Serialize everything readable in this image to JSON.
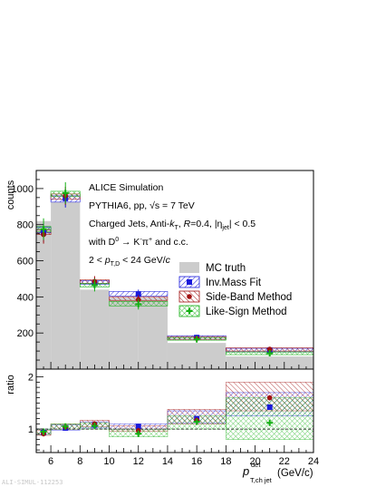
{
  "chart_data": {
    "type": "bar",
    "x_bins": [
      [
        5,
        6
      ],
      [
        6,
        8
      ],
      [
        8,
        10
      ],
      [
        10,
        12
      ],
      [
        12,
        14
      ],
      [
        14,
        18
      ],
      [
        18,
        24
      ]
    ],
    "x_centers": [
      5.5,
      7,
      9,
      11,
      13,
      16,
      21
    ],
    "xlim": [
      5,
      24
    ],
    "xticks": [
      6,
      8,
      10,
      12,
      14,
      16,
      18,
      20,
      22,
      24
    ],
    "xlabel_main": "p",
    "xlabel_sup": "det",
    "xlabel_sub": "T,ch jet",
    "xlabel_units": "(GeV/c)",
    "upper": {
      "ylabel": "counts",
      "ylim": [
        0,
        1100
      ],
      "yticks": [
        200,
        400,
        600,
        800,
        1000
      ],
      "series": [
        {
          "name": "MC truth",
          "style": "filled-hist",
          "color": "#cccccc",
          "values": [
            820,
            925,
            440,
            395,
            395,
            145,
            70
          ]
        },
        {
          "name": "Inv.Mass Fit",
          "marker": "square",
          "color": "#1a1adb",
          "x": [
            5.5,
            7,
            9,
            12,
            16,
            21
          ],
          "values": [
            755,
            945,
            475,
            415,
            175,
            105
          ],
          "errors": [
            50,
            50,
            30,
            25,
            15,
            10
          ]
        },
        {
          "name": "Side-Band Method",
          "marker": "circle",
          "color": "#a01010",
          "x": [
            5.5,
            7,
            9,
            12,
            16,
            21
          ],
          "values": [
            745,
            960,
            485,
            385,
            170,
            110
          ],
          "errors": [
            50,
            50,
            30,
            25,
            15,
            10
          ]
        },
        {
          "name": "Like-Sign Method",
          "marker": "cross",
          "color": "#14b014",
          "x": [
            5.5,
            7,
            9,
            12,
            16,
            21
          ],
          "values": [
            775,
            975,
            465,
            360,
            165,
            88
          ],
          "errors": [
            60,
            60,
            35,
            30,
            18,
            12
          ]
        }
      ],
      "bands": [
        {
          "series": "Inv.Mass Fit",
          "color": "#1a1adb",
          "bins": [
            [
              5,
              6,
              755,
              785
            ],
            [
              6,
              8,
              925,
              960
            ],
            [
              8,
              10,
              470,
              490
            ],
            [
              10,
              14,
              405,
              430
            ],
            [
              14,
              18,
              165,
              185
            ],
            [
              18,
              24,
              95,
              115
            ]
          ]
        },
        {
          "series": "Side-Band Method",
          "color": "#a01010",
          "bins": [
            [
              5,
              6,
              745,
              770
            ],
            [
              6,
              8,
              940,
              970
            ],
            [
              8,
              10,
              475,
              495
            ],
            [
              10,
              14,
              380,
              400
            ],
            [
              14,
              18,
              165,
              180
            ],
            [
              18,
              24,
              100,
              118
            ]
          ]
        },
        {
          "series": "Like-Sign Method",
          "color": "#14b014",
          "bins": [
            [
              5,
              6,
              760,
              790
            ],
            [
              6,
              8,
              955,
              985
            ],
            [
              8,
              10,
              455,
              475
            ],
            [
              10,
              14,
              350,
              375
            ],
            [
              14,
              18,
              160,
              175
            ],
            [
              18,
              24,
              80,
              95
            ]
          ]
        }
      ]
    },
    "ratio": {
      "ylabel": "ratio",
      "ylim": [
        0.55,
        2.15
      ],
      "yticks": [
        1,
        2
      ],
      "reference_line": 1,
      "series": [
        {
          "name": "Inv.Mass Fit",
          "x": [
            5.5,
            7,
            9,
            12,
            16,
            21
          ],
          "values": [
            0.93,
            1.02,
            1.08,
            1.05,
            1.2,
            1.42
          ]
        },
        {
          "name": "Side-Band Method",
          "x": [
            5.5,
            7,
            9,
            12,
            16,
            21
          ],
          "values": [
            0.91,
            1.04,
            1.1,
            0.97,
            1.17,
            1.6
          ]
        },
        {
          "name": "Like-Sign Method",
          "x": [
            5.5,
            7,
            9,
            12,
            16,
            21
          ],
          "values": [
            0.95,
            1.05,
            1.06,
            0.91,
            1.14,
            1.12
          ]
        }
      ],
      "bands": [
        {
          "series": "Inv.Mass Fit",
          "color": "#1a1adb",
          "bins": [
            [
              5,
              6,
              0.9,
              1.0
            ],
            [
              6,
              8,
              0.98,
              1.08
            ],
            [
              8,
              10,
              1.02,
              1.14
            ],
            [
              10,
              14,
              1.0,
              1.1
            ],
            [
              14,
              18,
              1.12,
              1.35
            ],
            [
              18,
              24,
              1.25,
              1.7
            ]
          ]
        },
        {
          "series": "Side-Band Method",
          "color": "#a01010",
          "bins": [
            [
              5,
              6,
              0.88,
              0.98
            ],
            [
              6,
              8,
              1.0,
              1.1
            ],
            [
              8,
              10,
              1.05,
              1.17
            ],
            [
              10,
              14,
              0.96,
              1.06
            ],
            [
              14,
              18,
              1.1,
              1.38
            ],
            [
              18,
              24,
              1.35,
              1.9
            ]
          ]
        },
        {
          "series": "Like-Sign Method",
          "color": "#14b014",
          "bins": [
            [
              5,
              6,
              0.9,
              1.0
            ],
            [
              6,
              8,
              1.0,
              1.1
            ],
            [
              8,
              10,
              1.0,
              1.12
            ],
            [
              10,
              14,
              0.85,
              1.0
            ],
            [
              14,
              18,
              1.0,
              1.25
            ],
            [
              18,
              24,
              0.8,
              1.6
            ]
          ]
        }
      ]
    }
  },
  "annotations": {
    "line1": "ALICE Simulation",
    "line2a": "PYTHIA6, pp, ",
    "line2b": "√s = 7 TeV",
    "line3a": "Charged Jets, Anti-",
    "line3k": "k",
    "line3kt": "T",
    "line3b": ", ",
    "line3R": "R",
    "line3c": "=0.4, |η",
    "line3jet": "jet",
    "line3d": "| < 0.5",
    "line4a": "with D",
    "line4sup": "0",
    "line4b": " → K",
    "line4sup2": "-",
    "line4c": "π",
    "line4sup3": "+",
    "line4d": " and c.c.",
    "line5a": "2 < ",
    "line5p": "p",
    "line5sub": "T,D",
    "line5b": " < 24 GeV/",
    "line5c": "c"
  },
  "legend": {
    "mc": "MC truth",
    "inv": "Inv.Mass Fit",
    "sb": "Side-Band Method",
    "ls": "Like-Sign Method"
  },
  "footer": "ALI-SIMUL-112253"
}
